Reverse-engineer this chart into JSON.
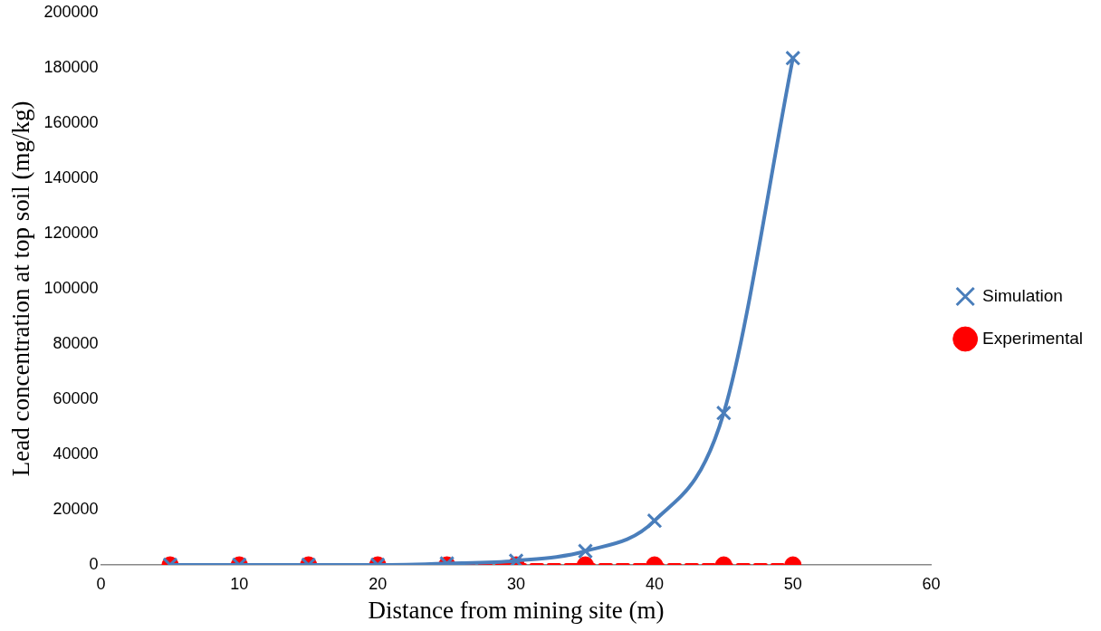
{
  "chart_data": {
    "type": "line",
    "xlabel": "Distance from mining site (m)",
    "ylabel": "Lead concentration at top soil (mg/kg)",
    "x": [
      5,
      10,
      15,
      20,
      25,
      30,
      35,
      40,
      45,
      50
    ],
    "xlim": [
      0,
      60
    ],
    "xticks": [
      0,
      10,
      20,
      30,
      40,
      50,
      60
    ],
    "ylim": [
      0,
      200000
    ],
    "yticks": [
      0,
      20000,
      40000,
      60000,
      80000,
      100000,
      120000,
      140000,
      160000,
      180000,
      200000
    ],
    "grid": false,
    "legend": "right",
    "series": [
      {
        "name": "Simulation",
        "color": "#4a7ebb",
        "marker": "cross",
        "line_style": "solid",
        "values": [
          0,
          0,
          0,
          0,
          500,
          1500,
          5000,
          16000,
          55000,
          183500
        ]
      },
      {
        "name": "Experimental",
        "color": "#ff0000",
        "marker": "circle",
        "line_style": "dashed",
        "values": [
          0,
          0,
          0,
          0,
          0,
          0,
          0,
          0,
          0,
          0
        ]
      }
    ]
  }
}
